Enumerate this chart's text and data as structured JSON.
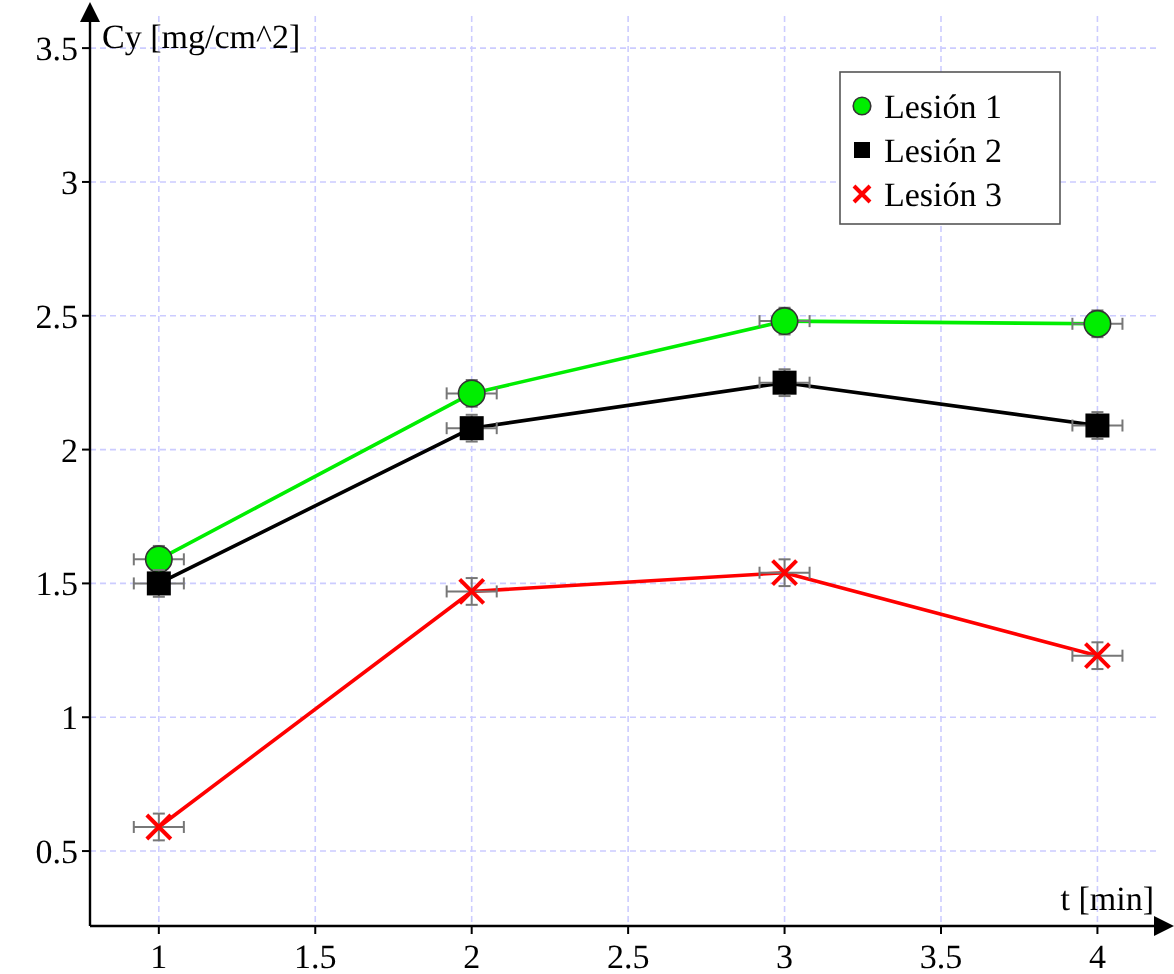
{
  "chart_data": {
    "type": "line",
    "xlabel": "t [min]",
    "ylabel": "Cy [mg/cm^2]",
    "x": [
      1,
      2,
      3,
      4
    ],
    "series": [
      {
        "name": "Lesión 1",
        "color": "#00ee00",
        "marker": "circle",
        "values": [
          1.59,
          2.21,
          2.48,
          2.47
        ],
        "errors": [
          0.05,
          0.05,
          0.05,
          0.05
        ],
        "xerrors": [
          0.08,
          0.08,
          0.08,
          0.08
        ]
      },
      {
        "name": "Lesión 2",
        "color": "#000000",
        "marker": "square",
        "values": [
          1.5,
          2.08,
          2.25,
          2.09
        ],
        "errors": [
          0.05,
          0.05,
          0.05,
          0.05
        ],
        "xerrors": [
          0.08,
          0.08,
          0.08,
          0.08
        ]
      },
      {
        "name": "Lesión 3",
        "color": "#ff0000",
        "marker": "cross",
        "values": [
          0.59,
          1.47,
          1.54,
          1.23
        ],
        "errors": [
          0.05,
          0.05,
          0.05,
          0.05
        ],
        "xerrors": [
          0.08,
          0.08,
          0.08,
          0.08
        ]
      }
    ],
    "xlim": [
      0.78,
      4.2
    ],
    "ylim": [
      0.22,
      3.62
    ],
    "xticks": [
      1,
      1.5,
      2,
      2.5,
      3,
      3.5,
      4
    ],
    "yticks": [
      0.5,
      1,
      1.5,
      2,
      2.5,
      3,
      3.5
    ],
    "grid": true,
    "legend": "top right"
  }
}
